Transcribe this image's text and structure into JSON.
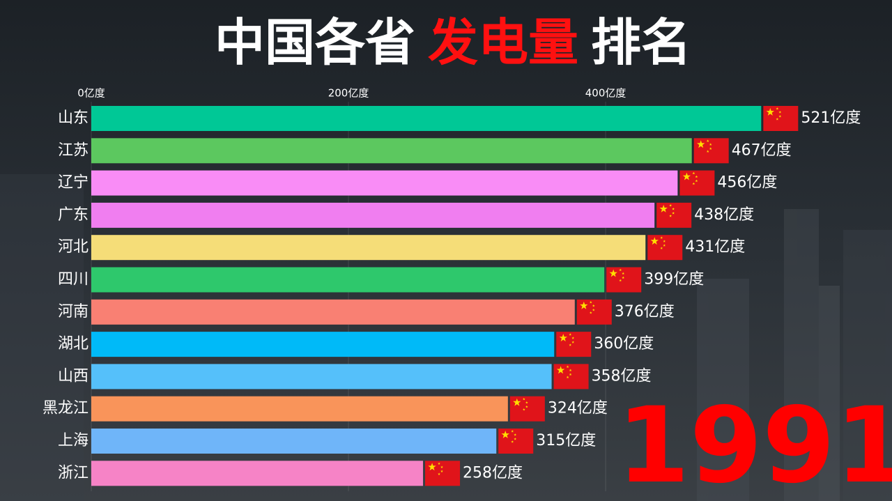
{
  "chart_data": {
    "type": "bar",
    "orientation": "horizontal",
    "title": [
      "中国各省",
      "发电量",
      "排名"
    ],
    "title_colors": [
      "#ffffff",
      "#ff1010",
      "#ffffff"
    ],
    "categories": [
      "山东",
      "江苏",
      "辽宁",
      "广东",
      "河北",
      "四川",
      "河南",
      "湖北",
      "山西",
      "黑龙江",
      "上海",
      "浙江"
    ],
    "values": [
      521,
      467,
      456,
      438,
      431,
      399,
      376,
      360,
      358,
      324,
      315,
      258
    ],
    "value_labels": [
      "521亿度",
      "467亿度",
      "456亿度",
      "438亿度",
      "431亿度",
      "399亿度",
      "376亿度",
      "360亿度",
      "358亿度",
      "324亿度",
      "315亿度",
      "258亿度"
    ],
    "colors": [
      "#00c896",
      "#5cc85f",
      "#f98cf6",
      "#f07ef0",
      "#f5dd78",
      "#2ec86c",
      "#f98073",
      "#00baf8",
      "#55c0fa",
      "#f9945a",
      "#6fb5f9",
      "#f683c6"
    ],
    "xlim": [
      0,
      620
    ],
    "xticks": [
      {
        "value": 0,
        "label": "0亿度"
      },
      {
        "value": 200,
        "label": "200亿度"
      },
      {
        "value": 400,
        "label": "400亿度"
      }
    ],
    "grid": true,
    "annotation": "1991"
  }
}
